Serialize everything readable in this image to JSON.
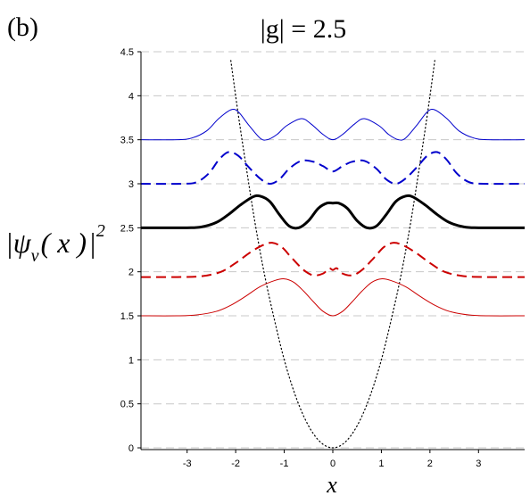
{
  "panel_label": "(b)",
  "chart_data": {
    "type": "line",
    "title": "|g| = 2.5",
    "xlabel": "x",
    "ylabel": {
      "prefix": "|",
      "psi": "ψ",
      "sub": "ν",
      "arg": "( x )",
      "suffix": "|",
      "power": "2"
    },
    "xlim": [
      -3.95,
      3.95
    ],
    "ylim": [
      -0.02,
      4.5
    ],
    "x_ticks": [
      "-3",
      "-2",
      "-1",
      "0",
      "1",
      "2",
      "3"
    ],
    "y_ticks": [
      "0",
      "0.5",
      "1",
      "1.5",
      "2",
      "2.5",
      "3",
      "3.5",
      "4",
      "4.5"
    ],
    "grid": "horizontal dashed",
    "series": [
      {
        "style": "dotted",
        "color": "#000000",
        "width": 1.2,
        "points": [
          [
            -2.1,
            4.4
          ],
          [
            -1.95,
            3.8
          ],
          [
            -1.8,
            3.25
          ],
          [
            -1.6,
            2.55
          ],
          [
            -1.4,
            1.95
          ],
          [
            -1.2,
            1.45
          ],
          [
            -1.0,
            1.0
          ],
          [
            -0.8,
            0.64
          ],
          [
            -0.6,
            0.36
          ],
          [
            -0.4,
            0.16
          ],
          [
            -0.2,
            0.04
          ],
          [
            0,
            0.0
          ],
          [
            0.2,
            0.04
          ],
          [
            0.4,
            0.16
          ],
          [
            0.6,
            0.36
          ],
          [
            0.8,
            0.64
          ],
          [
            1.0,
            1.0
          ],
          [
            1.2,
            1.45
          ],
          [
            1.4,
            1.95
          ],
          [
            1.6,
            2.55
          ],
          [
            1.8,
            3.25
          ],
          [
            1.95,
            3.8
          ],
          [
            2.1,
            4.4
          ]
        ]
      },
      {
        "style": "solid",
        "color": "#cc0000",
        "width": 1,
        "points": [
          [
            -3.95,
            1.5
          ],
          [
            -3.2,
            1.5
          ],
          [
            -2.8,
            1.51
          ],
          [
            -2.4,
            1.55
          ],
          [
            -2.1,
            1.62
          ],
          [
            -1.8,
            1.72
          ],
          [
            -1.5,
            1.83
          ],
          [
            -1.2,
            1.9
          ],
          [
            -1.0,
            1.92
          ],
          [
            -0.8,
            1.88
          ],
          [
            -0.6,
            1.78
          ],
          [
            -0.4,
            1.66
          ],
          [
            -0.2,
            1.55
          ],
          [
            0,
            1.5
          ],
          [
            0.2,
            1.55
          ],
          [
            0.4,
            1.66
          ],
          [
            0.6,
            1.78
          ],
          [
            0.8,
            1.88
          ],
          [
            1.0,
            1.92
          ],
          [
            1.2,
            1.9
          ],
          [
            1.5,
            1.83
          ],
          [
            1.8,
            1.72
          ],
          [
            2.1,
            1.62
          ],
          [
            2.4,
            1.55
          ],
          [
            2.8,
            1.51
          ],
          [
            3.2,
            1.5
          ],
          [
            3.95,
            1.5
          ]
        ]
      },
      {
        "style": "dashed",
        "color": "#cc0000",
        "width": 2,
        "points": [
          [
            -3.95,
            1.94
          ],
          [
            -3.2,
            1.94
          ],
          [
            -2.7,
            1.95
          ],
          [
            -2.3,
            2.0
          ],
          [
            -2.0,
            2.1
          ],
          [
            -1.7,
            2.22
          ],
          [
            -1.45,
            2.3
          ],
          [
            -1.25,
            2.33
          ],
          [
            -1.05,
            2.28
          ],
          [
            -0.85,
            2.16
          ],
          [
            -0.6,
            2.02
          ],
          [
            -0.4,
            1.96
          ],
          [
            -0.2,
            1.98
          ],
          [
            -0.08,
            2.04
          ],
          [
            0,
            2.02
          ],
          [
            0.08,
            2.04
          ],
          [
            0.2,
            1.98
          ],
          [
            0.4,
            1.96
          ],
          [
            0.6,
            2.02
          ],
          [
            0.85,
            2.16
          ],
          [
            1.05,
            2.28
          ],
          [
            1.25,
            2.33
          ],
          [
            1.45,
            2.3
          ],
          [
            1.7,
            2.22
          ],
          [
            2.0,
            2.1
          ],
          [
            2.3,
            2.0
          ],
          [
            2.7,
            1.95
          ],
          [
            3.2,
            1.94
          ],
          [
            3.95,
            1.94
          ]
        ]
      },
      {
        "style": "solid",
        "color": "#000000",
        "width": 3,
        "points": [
          [
            -3.95,
            2.5
          ],
          [
            -3.0,
            2.5
          ],
          [
            -2.7,
            2.51
          ],
          [
            -2.4,
            2.56
          ],
          [
            -2.15,
            2.65
          ],
          [
            -1.9,
            2.76
          ],
          [
            -1.65,
            2.85
          ],
          [
            -1.5,
            2.86
          ],
          [
            -1.3,
            2.8
          ],
          [
            -1.1,
            2.65
          ],
          [
            -0.9,
            2.52
          ],
          [
            -0.7,
            2.5
          ],
          [
            -0.5,
            2.58
          ],
          [
            -0.3,
            2.72
          ],
          [
            -0.12,
            2.78
          ],
          [
            0,
            2.78
          ],
          [
            0.12,
            2.78
          ],
          [
            0.3,
            2.72
          ],
          [
            0.5,
            2.58
          ],
          [
            0.7,
            2.5
          ],
          [
            0.9,
            2.52
          ],
          [
            1.1,
            2.65
          ],
          [
            1.3,
            2.8
          ],
          [
            1.5,
            2.86
          ],
          [
            1.65,
            2.85
          ],
          [
            1.9,
            2.76
          ],
          [
            2.15,
            2.65
          ],
          [
            2.4,
            2.56
          ],
          [
            2.7,
            2.51
          ],
          [
            3.0,
            2.5
          ],
          [
            3.95,
            2.5
          ]
        ]
      },
      {
        "style": "dashed",
        "color": "#0000cc",
        "width": 2,
        "points": [
          [
            -3.95,
            3.0
          ],
          [
            -3.1,
            3.0
          ],
          [
            -2.8,
            3.02
          ],
          [
            -2.55,
            3.12
          ],
          [
            -2.35,
            3.27
          ],
          [
            -2.15,
            3.36
          ],
          [
            -1.95,
            3.32
          ],
          [
            -1.75,
            3.2
          ],
          [
            -1.5,
            3.06
          ],
          [
            -1.3,
            3.0
          ],
          [
            -1.1,
            3.05
          ],
          [
            -0.9,
            3.17
          ],
          [
            -0.65,
            3.26
          ],
          [
            -0.4,
            3.25
          ],
          [
            -0.2,
            3.2
          ],
          [
            0,
            3.14
          ],
          [
            0.2,
            3.2
          ],
          [
            0.4,
            3.25
          ],
          [
            0.65,
            3.26
          ],
          [
            0.9,
            3.17
          ],
          [
            1.1,
            3.05
          ],
          [
            1.3,
            3.0
          ],
          [
            1.5,
            3.06
          ],
          [
            1.75,
            3.2
          ],
          [
            1.95,
            3.32
          ],
          [
            2.15,
            3.36
          ],
          [
            2.35,
            3.27
          ],
          [
            2.55,
            3.12
          ],
          [
            2.8,
            3.02
          ],
          [
            3.1,
            3.0
          ],
          [
            3.95,
            3.0
          ]
        ]
      },
      {
        "style": "solid",
        "color": "#0000cc",
        "width": 1,
        "points": [
          [
            -3.95,
            3.5
          ],
          [
            -3.2,
            3.5
          ],
          [
            -2.9,
            3.52
          ],
          [
            -2.6,
            3.6
          ],
          [
            -2.35,
            3.74
          ],
          [
            -2.1,
            3.84
          ],
          [
            -1.95,
            3.82
          ],
          [
            -1.75,
            3.68
          ],
          [
            -1.5,
            3.52
          ],
          [
            -1.35,
            3.5
          ],
          [
            -1.15,
            3.56
          ],
          [
            -0.95,
            3.66
          ],
          [
            -0.65,
            3.74
          ],
          [
            -0.45,
            3.68
          ],
          [
            -0.2,
            3.56
          ],
          [
            0,
            3.5
          ],
          [
            0.2,
            3.56
          ],
          [
            0.45,
            3.68
          ],
          [
            0.65,
            3.74
          ],
          [
            0.95,
            3.66
          ],
          [
            1.15,
            3.56
          ],
          [
            1.35,
            3.5
          ],
          [
            1.5,
            3.52
          ],
          [
            1.75,
            3.68
          ],
          [
            1.95,
            3.82
          ],
          [
            2.1,
            3.84
          ],
          [
            2.35,
            3.74
          ],
          [
            2.6,
            3.6
          ],
          [
            2.9,
            3.52
          ],
          [
            3.2,
            3.5
          ],
          [
            3.95,
            3.5
          ]
        ]
      }
    ]
  }
}
